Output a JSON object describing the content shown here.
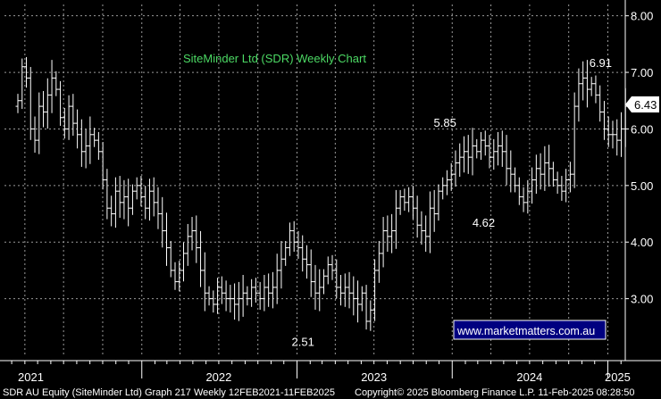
{
  "chart_data": {
    "type": "ohlc",
    "title": "SiteMinder Ltd (SDR) Weekly Chart",
    "ylim": [
      2.0,
      8.2
    ],
    "y_ticks": [
      "8.00",
      "7.00",
      "6.00",
      "5.00",
      "4.00",
      "3.00"
    ],
    "x_axis_years": [
      "2021",
      "2022",
      "2023",
      "2024",
      "2025"
    ],
    "last_price": "6.43",
    "annotations": [
      {
        "text": "6.91",
        "x": "2024-12",
        "y": 6.91
      },
      {
        "text": "5.85",
        "x": "2023-12",
        "y": 5.85
      },
      {
        "text": "4.62",
        "x": "2024-03",
        "y": 4.62
      },
      {
        "text": "2.51",
        "x": "2023-01",
        "y": 2.51
      }
    ],
    "watermark": "www.marketmatters.com.au",
    "footer_left": "SDR AU Equity (SiteMinder Ltd) Graph 217  Weekly 12FEB2021-11FEB2025",
    "footer_right": "Copyright© 2025 Bloomberg Finance L.P.     11-Feb-2025 08:28:50",
    "x_start": "2021-02-12",
    "x_end": "2025-02-11",
    "series_weekly_close": [
      6.5,
      7.1,
      6.9,
      6.0,
      5.8,
      6.4,
      6.3,
      6.6,
      6.9,
      6.7,
      6.2,
      6.0,
      6.4,
      6.1,
      5.9,
      5.6,
      5.7,
      5.9,
      5.8,
      5.6,
      5.1,
      4.6,
      4.5,
      4.9,
      4.7,
      4.8,
      4.6,
      4.9,
      5.0,
      4.8,
      4.6,
      4.9,
      4.7,
      4.5,
      4.2,
      3.9,
      3.5,
      3.3,
      3.5,
      3.8,
      4.1,
      4.2,
      3.9,
      3.5,
      3.1,
      3.0,
      2.9,
      3.2,
      3.1,
      3.0,
      3.0,
      2.9,
      3.0,
      3.1,
      3.0,
      3.2,
      3.1,
      3.0,
      3.2,
      3.1,
      3.2,
      3.5,
      3.7,
      3.9,
      4.2,
      4.0,
      3.9,
      3.7,
      3.6,
      3.3,
      3.1,
      3.2,
      3.4,
      3.6,
      3.5,
      3.2,
      3.1,
      3.2,
      3.1,
      3.0,
      2.9,
      3.1,
      2.6,
      2.8,
      3.5,
      3.8,
      4.2,
      4.1,
      4.2,
      4.6,
      4.8,
      4.7,
      4.8,
      4.6,
      4.3,
      4.2,
      4.1,
      4.6,
      4.5,
      4.9,
      5.0,
      5.1,
      5.2,
      5.4,
      5.5,
      5.6,
      5.5,
      5.7,
      5.6,
      5.8,
      5.7,
      5.5,
      5.6,
      5.7,
      5.6,
      5.3,
      5.2,
      5.0,
      4.8,
      4.7,
      4.9,
      5.1,
      5.3,
      5.2,
      5.4,
      5.3,
      5.1,
      5.0,
      4.9,
      5.1,
      5.2,
      6.4,
      6.8,
      6.9,
      6.7,
      6.8,
      6.6,
      6.3,
      6.0,
      5.9,
      5.9,
      5.8,
      6.0,
      6.4
    ]
  }
}
